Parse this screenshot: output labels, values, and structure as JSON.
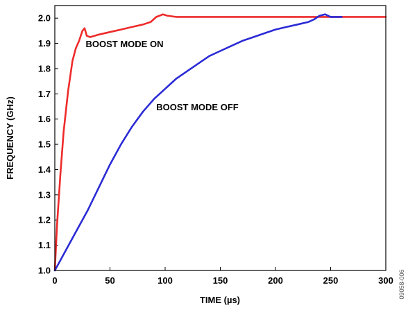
{
  "chart_data": {
    "type": "line",
    "title": "",
    "xlabel": "TIME (µs)",
    "ylabel": "FREQUENCY (GHz)",
    "xlim": [
      0,
      300
    ],
    "ylim": [
      1.0,
      2.05
    ],
    "grid": false,
    "x_ticks": [
      "0",
      "50",
      "100",
      "150",
      "200",
      "250",
      "300"
    ],
    "y_ticks": [
      "1.0",
      "1.1",
      "1.2",
      "1.3",
      "1.4",
      "1.5",
      "1.6",
      "1.7",
      "1.8",
      "1.9",
      "2.0"
    ],
    "side_label": "09058-006",
    "series": [
      {
        "name": "BOOST MODE ON",
        "color": "#ee2b2b",
        "x": [
          0,
          2,
          5,
          8,
          12,
          16,
          19,
          22,
          25,
          27,
          29,
          32,
          40,
          50,
          60,
          70,
          80,
          87,
          92,
          95,
          98,
          102,
          110,
          120,
          150,
          200,
          250,
          300
        ],
        "y": [
          1.0,
          1.18,
          1.38,
          1.55,
          1.71,
          1.83,
          1.88,
          1.91,
          1.95,
          1.96,
          1.93,
          1.925,
          1.935,
          1.945,
          1.955,
          1.965,
          1.975,
          1.985,
          2.005,
          2.01,
          2.015,
          2.01,
          2.005,
          2.005,
          2.005,
          2.005,
          2.005,
          2.005
        ]
      },
      {
        "name": "BOOST MODE OFF",
        "color": "#2b2bd6",
        "x": [
          0,
          5,
          10,
          20,
          30,
          40,
          50,
          60,
          70,
          80,
          90,
          100,
          110,
          120,
          130,
          140,
          150,
          160,
          170,
          180,
          190,
          200,
          210,
          220,
          230,
          235,
          240,
          245,
          250,
          260
        ],
        "y": [
          1.0,
          1.04,
          1.08,
          1.16,
          1.24,
          1.33,
          1.42,
          1.5,
          1.57,
          1.63,
          1.68,
          1.72,
          1.76,
          1.79,
          1.82,
          1.85,
          1.87,
          1.89,
          1.91,
          1.925,
          1.94,
          1.955,
          1.965,
          1.975,
          1.985,
          1.995,
          2.01,
          2.015,
          2.005,
          2.005
        ]
      }
    ],
    "annotations": [
      {
        "text": "BOOST MODE ON",
        "x": 28,
        "y": 1.885
      },
      {
        "text": "BOOST MODE OFF",
        "x": 92,
        "y": 1.635
      }
    ]
  }
}
